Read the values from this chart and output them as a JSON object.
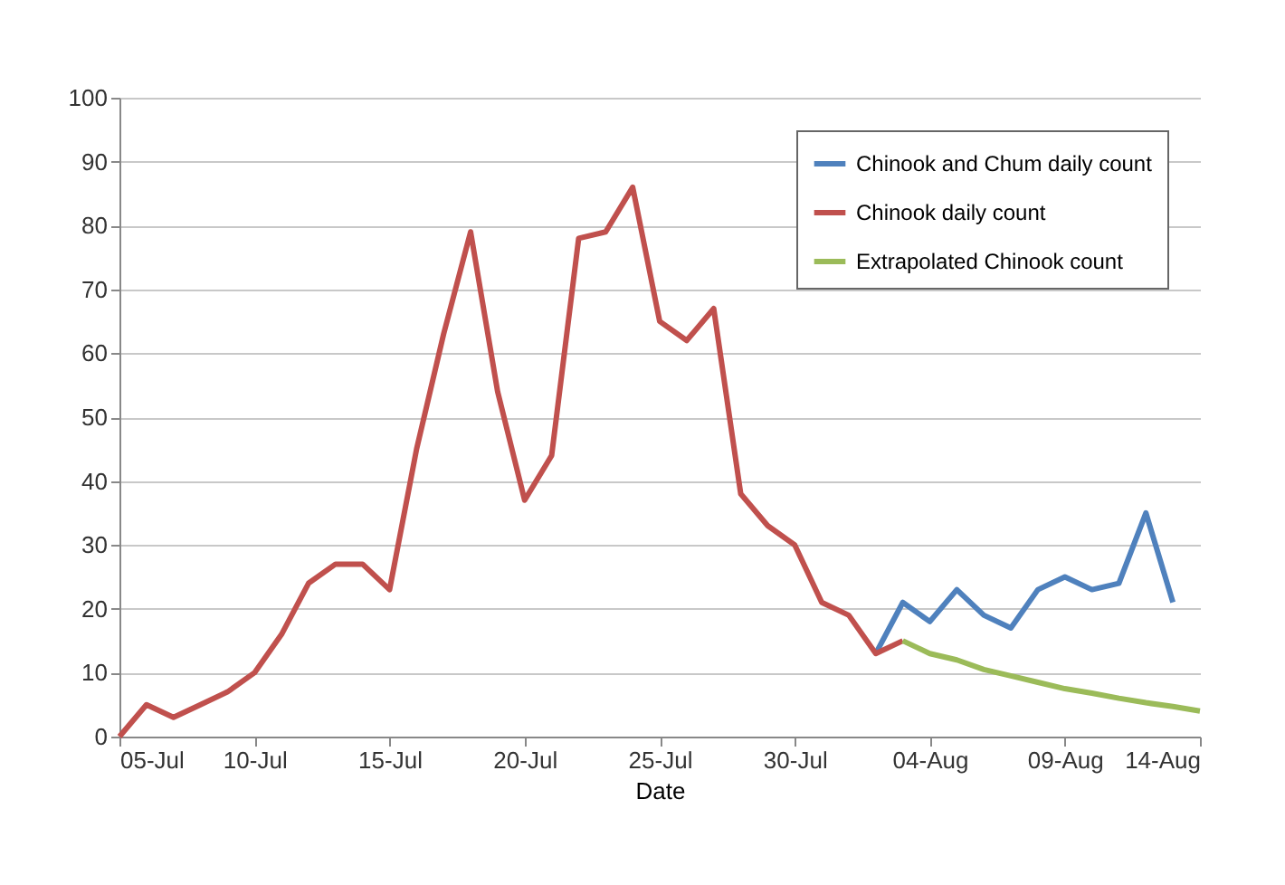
{
  "chart_data": {
    "type": "line",
    "xlabel": "Date",
    "x": [
      "--07-05",
      "--07-06",
      "--07-07",
      "--07-08",
      "--07-09",
      "--07-10",
      "--07-11",
      "--07-12",
      "--07-13",
      "--07-14",
      "--07-15",
      "--07-16",
      "--07-17",
      "--07-18",
      "--07-19",
      "--07-20",
      "--07-21",
      "--07-22",
      "--07-23",
      "--07-24",
      "--07-25",
      "--07-26",
      "--07-27",
      "--07-28",
      "--07-29",
      "--07-30",
      "--07-31",
      "--08-01",
      "--08-02",
      "--08-03",
      "--08-04",
      "--08-05",
      "--08-06",
      "--08-07",
      "--08-08",
      "--08-09",
      "--08-10",
      "--08-11",
      "--08-12",
      "--08-13",
      "--08-14"
    ],
    "series": [
      {
        "name": "Chinook and Chum daily count",
        "color": "#4f81bd",
        "values": [
          null,
          null,
          null,
          null,
          null,
          null,
          null,
          null,
          null,
          null,
          null,
          null,
          null,
          null,
          null,
          null,
          null,
          null,
          null,
          null,
          null,
          null,
          null,
          null,
          null,
          null,
          null,
          null,
          13,
          21,
          18,
          23,
          19,
          17,
          23,
          25,
          23,
          24,
          35,
          21,
          null
        ]
      },
      {
        "name": "Chinook daily count",
        "color": "#c0504d",
        "values": [
          0,
          5,
          3,
          5,
          7,
          10,
          16,
          24,
          27,
          27,
          23,
          45,
          63,
          79,
          54,
          37,
          44,
          78,
          79,
          86,
          65,
          62,
          67,
          38,
          33,
          30,
          21,
          19,
          13,
          15,
          null,
          null,
          null,
          null,
          null,
          null,
          null,
          null,
          null,
          null,
          null
        ]
      },
      {
        "name": "Extrapolated Chinook count",
        "color": "#9bbb59",
        "values": [
          null,
          null,
          null,
          null,
          null,
          null,
          null,
          null,
          null,
          null,
          null,
          null,
          null,
          null,
          null,
          null,
          null,
          null,
          null,
          null,
          null,
          null,
          null,
          null,
          null,
          null,
          null,
          null,
          null,
          15,
          13,
          12,
          10.5,
          9.5,
          8.5,
          7.5,
          6.8,
          6,
          5.3,
          4.7,
          4
        ]
      }
    ],
    "xlim": [
      "--07-05",
      "--08-14"
    ],
    "xticks": [
      {
        "value": "--07-05",
        "label": "05-Jul"
      },
      {
        "value": "--07-10",
        "label": "10-Jul"
      },
      {
        "value": "--07-15",
        "label": "15-Jul"
      },
      {
        "value": "--07-20",
        "label": "20-Jul"
      },
      {
        "value": "--07-25",
        "label": "25-Jul"
      },
      {
        "value": "--07-30",
        "label": "30-Jul"
      },
      {
        "value": "--08-04",
        "label": "04-Aug"
      },
      {
        "value": "--08-09",
        "label": "09-Aug"
      },
      {
        "value": "--08-14",
        "label": "14-Aug"
      }
    ],
    "ylim": [
      0,
      100
    ],
    "yticks": [
      0,
      10,
      20,
      30,
      40,
      50,
      60,
      70,
      80,
      90,
      100
    ],
    "grid": "y",
    "legend": "top right"
  }
}
